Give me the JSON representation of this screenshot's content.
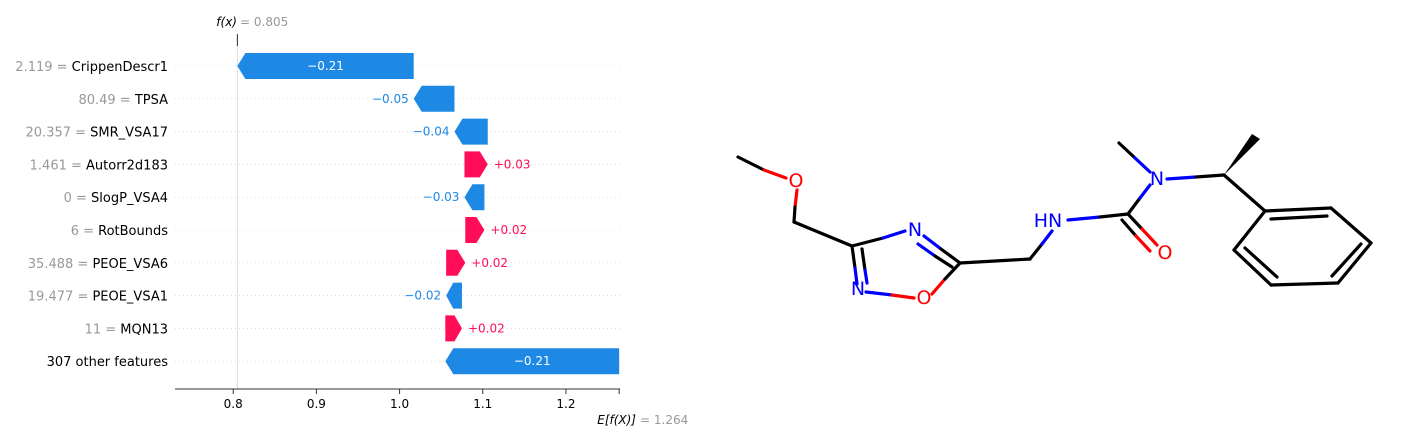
{
  "chart_data": {
    "type": "bar",
    "subtype": "shap-waterfall",
    "fx_label": "f(x)",
    "fx_value": "= 0.805",
    "fx": 0.805,
    "base_label": "E[f(X)]",
    "base_value_text": "= 1.264",
    "base_value": 1.264,
    "xlim": [
      0.73,
      1.265
    ],
    "xticks": [
      "0.8",
      "0.9",
      "1.0",
      "1.1",
      "1.2"
    ],
    "xtick_values": [
      0.8,
      0.9,
      1.0,
      1.1,
      1.2
    ],
    "rows": [
      {
        "value": "2.119",
        "name": "CrippenDescr1",
        "contribution": -0.21,
        "label": "−0.21",
        "start": 1.017,
        "end": 0.805
      },
      {
        "value": "80.49",
        "name": "TPSA",
        "contribution": -0.05,
        "label": "−0.05",
        "start": 1.066,
        "end": 1.017
      },
      {
        "value": "20.357",
        "name": "SMR_VSA17",
        "contribution": -0.04,
        "label": "−0.04",
        "start": 1.106,
        "end": 1.066
      },
      {
        "value": "1.461",
        "name": "Autorr2d183",
        "contribution": 0.03,
        "label": "+0.03",
        "start": 1.078,
        "end": 1.106
      },
      {
        "value": "0",
        "name": "SlogP_VSA4",
        "contribution": -0.03,
        "label": "−0.03",
        "start": 1.102,
        "end": 1.078
      },
      {
        "value": "6",
        "name": "RotBounds",
        "contribution": 0.02,
        "label": "+0.02",
        "start": 1.079,
        "end": 1.102
      },
      {
        "value": "35.488",
        "name": "PEOE_VSA6",
        "contribution": 0.02,
        "label": "+0.02",
        "start": 1.056,
        "end": 1.079
      },
      {
        "value": "19.477",
        "name": "PEOE_VSA1",
        "contribution": -0.02,
        "label": "−0.02",
        "start": 1.075,
        "end": 1.056
      },
      {
        "value": "11",
        "name": "MQN13",
        "contribution": 0.02,
        "label": "+0.02",
        "start": 1.055,
        "end": 1.075
      },
      {
        "value": "",
        "name": "307 other features",
        "contribution": -0.21,
        "label": "−0.21",
        "start": 1.264,
        "end": 1.055
      }
    ],
    "colors": {
      "positive": "#ff0d57",
      "negative": "#1e88e5"
    }
  },
  "molecule": {
    "atom_labels": [
      "O",
      "N",
      "O",
      "N",
      "HN",
      "O",
      "N"
    ]
  }
}
